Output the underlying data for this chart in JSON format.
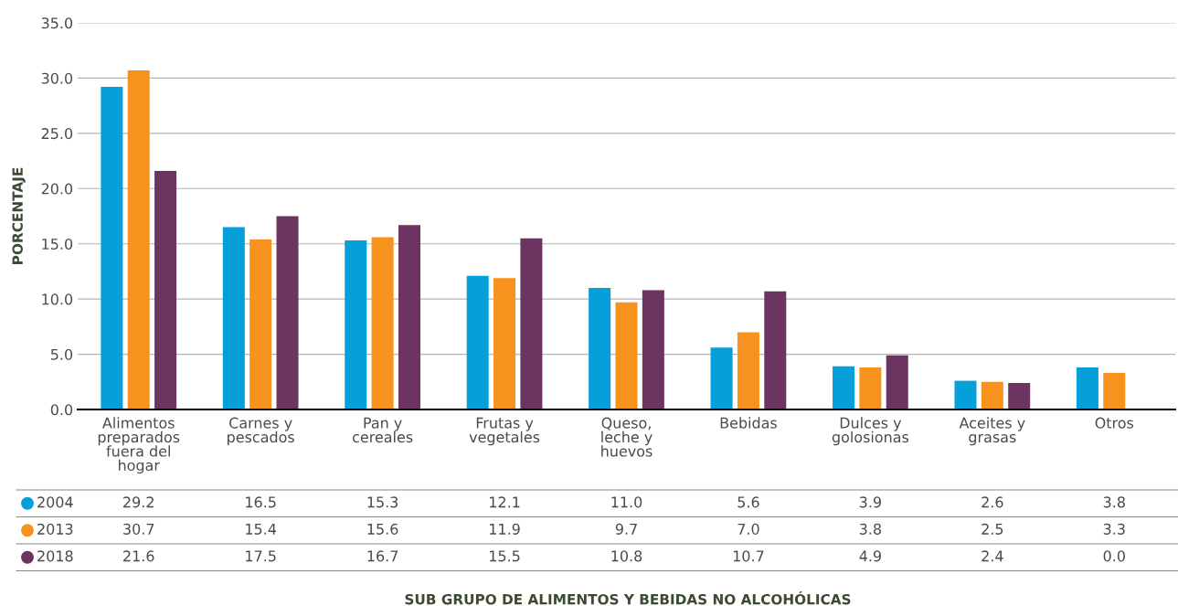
{
  "chart_data": {
    "type": "bar",
    "ylabel": "PORCENTAJE",
    "categories": [
      "Alimentos\npreparados\nfuera del\nhogar",
      "Carnes y\npescados",
      "Pan y\ncereales",
      "Frutas y\nvegetales",
      "Queso,\nleche y\nhuevos",
      "Bebidas",
      "Dulces y\ngolosionas",
      "Aceites y\ngrasas",
      "Otros"
    ],
    "series": [
      {
        "name": "2004",
        "color": "#079fd9",
        "values": [
          29.2,
          16.5,
          15.3,
          12.1,
          11.0,
          5.6,
          3.9,
          2.6,
          3.8
        ]
      },
      {
        "name": "2013",
        "color": "#f7921f",
        "values": [
          30.7,
          15.4,
          15.6,
          11.9,
          9.7,
          7.0,
          3.8,
          2.5,
          3.3
        ]
      },
      {
        "name": "2018",
        "color": "#6c3460",
        "values": [
          21.6,
          17.5,
          16.7,
          15.5,
          10.8,
          10.7,
          4.9,
          2.4,
          0.0
        ]
      }
    ],
    "ylim": [
      0,
      35
    ],
    "yticks": [
      {
        "value": 0,
        "label": "0.0"
      },
      {
        "value": 5,
        "label": "5.0"
      },
      {
        "value": 10,
        "label": "10.0"
      },
      {
        "value": 15,
        "label": "15.0"
      },
      {
        "value": 20,
        "label": "20.0"
      },
      {
        "value": 25,
        "label": "25.0"
      },
      {
        "value": 30,
        "label": "30.0"
      },
      {
        "value": 35,
        "label": "35.0"
      }
    ],
    "grid": "y",
    "legend": "bottom",
    "annotations": [
      "29.2",
      "16.5",
      "15.3",
      "12.1",
      "11.0",
      "5.6",
      "3.9",
      "2.6",
      "3.8",
      "30.7",
      "15.4",
      "15.6",
      "11.9",
      "9.7",
      "7.0",
      "3.8",
      "2.5",
      "3.3",
      "21.6",
      "17.5",
      "16.7",
      "15.5",
      "10.8",
      "10.7",
      "4.9",
      "2.4",
      "0.0",
      "SUB GRUPO DE ALIMENTOS Y BEBIDAS NO ALCOHÓLICAS"
    ]
  }
}
